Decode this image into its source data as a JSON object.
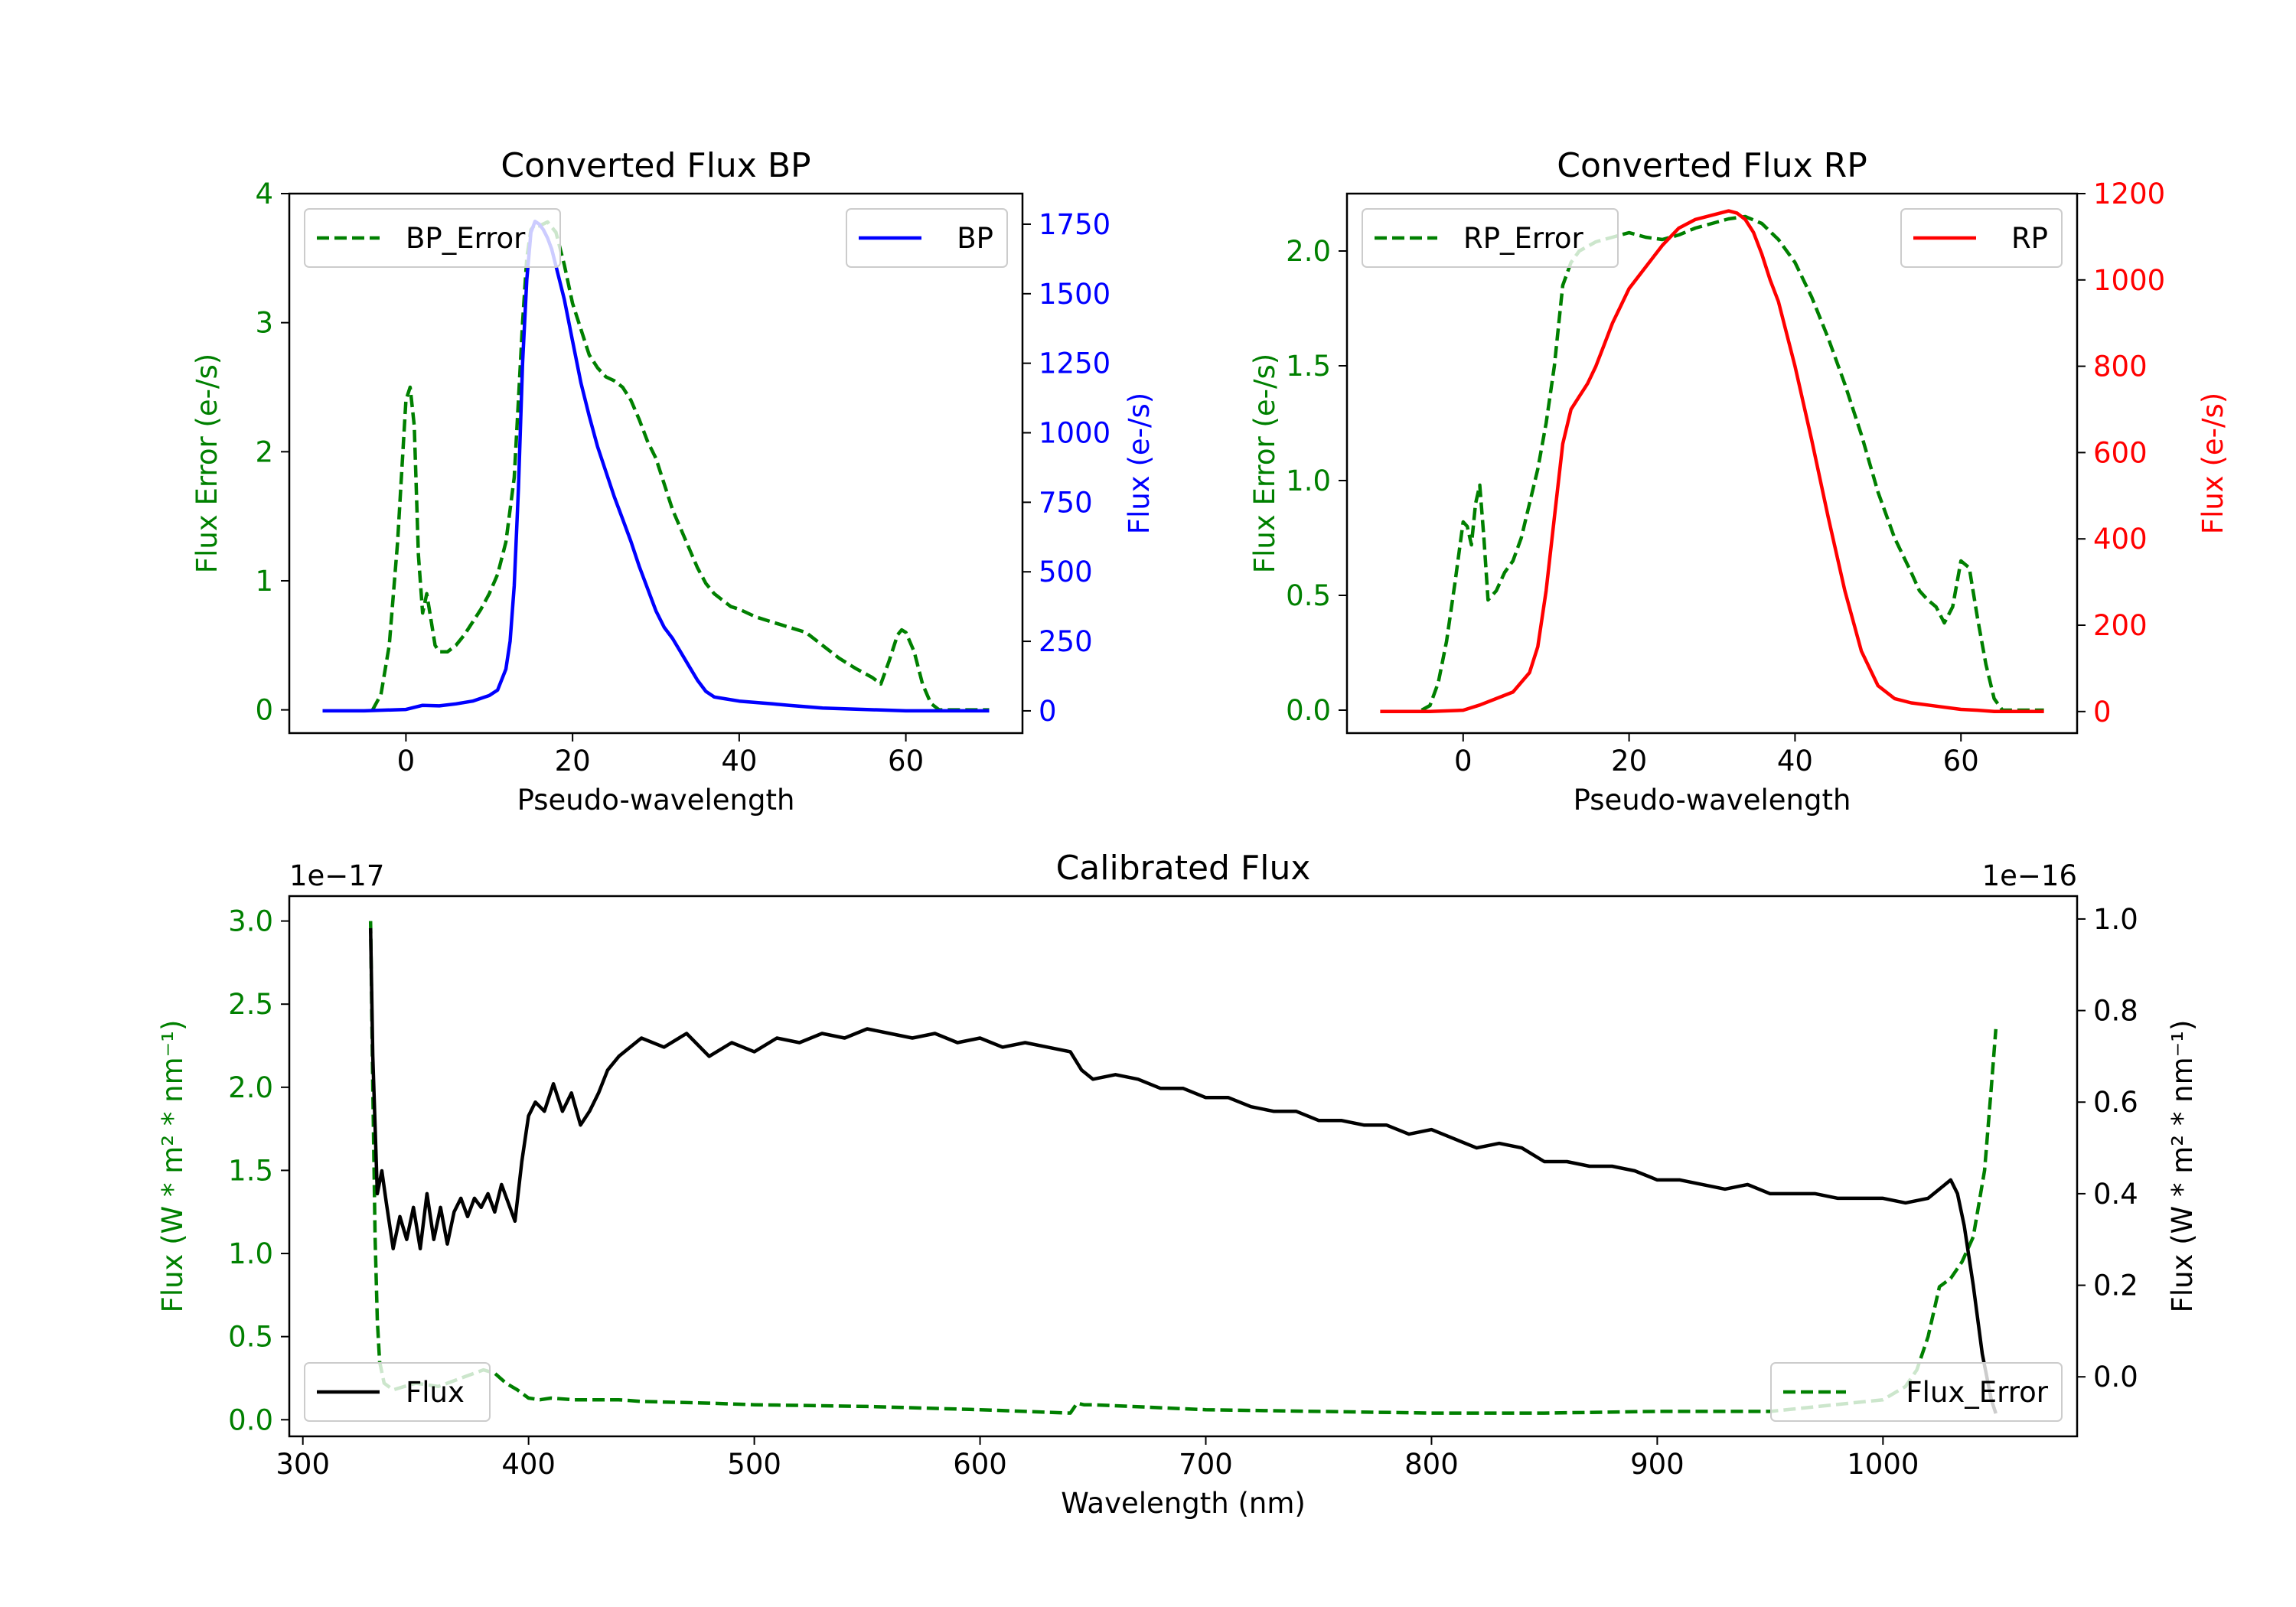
{
  "chart_data": [
    {
      "type": "line",
      "title": "Converted Flux BP",
      "xlabel": "Pseudo-wavelength",
      "ylabel_left": "Flux Error (e-/s)",
      "ylabel_right": "Flux (e-/s)",
      "xlim": [
        -14,
        74
      ],
      "ylim_left": [
        -0.18,
        4.0
      ],
      "ylim_right": [
        -80,
        1860
      ],
      "xticks": [
        0,
        20,
        40,
        60
      ],
      "xtick_labels": [
        "0",
        "20",
        "40",
        "60"
      ],
      "yticks_left": [
        0,
        1,
        2,
        3,
        4
      ],
      "ytick_labels_left": [
        "0",
        "1",
        "2",
        "3",
        "4"
      ],
      "yticks_right": [
        0,
        250,
        500,
        750,
        1000,
        1250,
        1500,
        1750
      ],
      "ytick_labels_right": [
        "0",
        "250",
        "500",
        "750",
        "1000",
        "1250",
        "1500",
        "1750"
      ],
      "left_color": "#008000",
      "right_color": "#0000ff",
      "legend_left": "BP_Error",
      "legend_right": "BP",
      "series": [
        {
          "name": "BP_Error",
          "axis": "left",
          "color": "#008000",
          "style": "dashed",
          "x": [
            -4,
            -3,
            -2,
            -1,
            0,
            0.5,
            1,
            1.5,
            2,
            2.5,
            3,
            3.5,
            4,
            5,
            6,
            7,
            8,
            9,
            10,
            11,
            12,
            13,
            13.5,
            14,
            14.5,
            15,
            15.5,
            16,
            17,
            18,
            19,
            20,
            21,
            22,
            23,
            24,
            25,
            26,
            27,
            28,
            29,
            30,
            31,
            32,
            33,
            34,
            35,
            36,
            37,
            38,
            39,
            40,
            42,
            44,
            46,
            48,
            50,
            52,
            54,
            56,
            57,
            58,
            59,
            59.5,
            60,
            61,
            62,
            63,
            64,
            65,
            66,
            68,
            70
          ],
          "y": [
            0.0,
            0.12,
            0.5,
            1.3,
            2.4,
            2.5,
            2.2,
            1.2,
            0.75,
            0.9,
            0.7,
            0.5,
            0.45,
            0.45,
            0.5,
            0.58,
            0.68,
            0.78,
            0.9,
            1.05,
            1.3,
            1.8,
            2.4,
            3.0,
            3.5,
            3.72,
            3.76,
            3.75,
            3.78,
            3.7,
            3.45,
            3.15,
            2.95,
            2.75,
            2.65,
            2.58,
            2.55,
            2.5,
            2.4,
            2.25,
            2.08,
            1.95,
            1.75,
            1.55,
            1.4,
            1.25,
            1.1,
            0.98,
            0.9,
            0.85,
            0.8,
            0.78,
            0.72,
            0.68,
            0.64,
            0.6,
            0.5,
            0.4,
            0.32,
            0.25,
            0.2,
            0.38,
            0.58,
            0.62,
            0.6,
            0.45,
            0.2,
            0.05,
            0.0,
            0.0,
            0.0,
            0.0,
            0.0
          ]
        },
        {
          "name": "BP",
          "axis": "right",
          "color": "#0000ff",
          "style": "solid",
          "x": [
            -10,
            -5,
            0,
            2,
            4,
            6,
            8,
            10,
            11,
            12,
            12.5,
            13,
            13.5,
            14,
            14.5,
            15,
            15.5,
            16,
            16.5,
            17,
            17.5,
            18,
            19,
            20,
            21,
            22,
            23,
            24,
            25,
            26,
            27,
            28,
            29,
            30,
            31,
            32,
            33,
            34,
            35,
            36,
            37,
            38,
            40,
            42,
            44,
            46,
            48,
            50,
            55,
            60,
            65,
            70
          ],
          "y": [
            0,
            0,
            5,
            20,
            18,
            25,
            35,
            55,
            75,
            150,
            250,
            450,
            800,
            1250,
            1550,
            1720,
            1760,
            1750,
            1730,
            1700,
            1660,
            1600,
            1480,
            1330,
            1180,
            1060,
            950,
            860,
            770,
            690,
            610,
            520,
            440,
            360,
            300,
            260,
            210,
            160,
            110,
            70,
            50,
            45,
            35,
            30,
            25,
            20,
            15,
            10,
            5,
            0,
            0,
            0
          ]
        }
      ]
    },
    {
      "type": "line",
      "title": "Converted Flux RP",
      "xlabel": "Pseudo-wavelength",
      "ylabel_left": "Flux Error (e-/s)",
      "ylabel_right": "Flux (e-/s)",
      "xlim": [
        -14,
        74
      ],
      "ylim_left": [
        -0.1,
        2.25
      ],
      "ylim_right": [
        -50,
        1200
      ],
      "xticks": [
        0,
        20,
        40,
        60
      ],
      "xtick_labels": [
        "0",
        "20",
        "40",
        "60"
      ],
      "yticks_left": [
        0.0,
        0.5,
        1.0,
        1.5,
        2.0
      ],
      "ytick_labels_left": [
        "0.0",
        "0.5",
        "1.0",
        "1.5",
        "2.0"
      ],
      "yticks_right": [
        0,
        200,
        400,
        600,
        800,
        1000,
        1200
      ],
      "ytick_labels_right": [
        "0",
        "200",
        "400",
        "600",
        "800",
        "1000",
        "1200"
      ],
      "left_color": "#008000",
      "right_color": "#ff0000",
      "legend_left": "RP_Error",
      "legend_right": "RP",
      "series": [
        {
          "name": "RP_Error",
          "axis": "left",
          "color": "#008000",
          "style": "dashed",
          "x": [
            -5,
            -4,
            -3,
            -2,
            -1,
            0,
            0.5,
            1,
            1.5,
            2,
            2.5,
            3,
            3.5,
            4,
            5,
            6,
            7,
            8,
            9,
            10,
            11,
            12,
            13,
            14,
            15,
            16,
            18,
            20,
            22,
            24,
            26,
            28,
            30,
            32,
            34,
            36,
            38,
            40,
            42,
            44,
            46,
            48,
            50,
            52,
            54,
            55,
            56,
            57,
            58,
            59,
            60,
            61,
            62,
            63,
            64,
            65,
            70
          ],
          "y": [
            0.0,
            0.02,
            0.12,
            0.3,
            0.55,
            0.82,
            0.8,
            0.72,
            0.9,
            0.98,
            0.75,
            0.48,
            0.5,
            0.52,
            0.6,
            0.65,
            0.75,
            0.9,
            1.05,
            1.25,
            1.5,
            1.85,
            1.95,
            2.0,
            2.02,
            2.04,
            2.06,
            2.08,
            2.06,
            2.05,
            2.07,
            2.1,
            2.12,
            2.14,
            2.15,
            2.12,
            2.05,
            1.95,
            1.8,
            1.62,
            1.42,
            1.2,
            0.95,
            0.75,
            0.6,
            0.52,
            0.48,
            0.45,
            0.38,
            0.45,
            0.65,
            0.62,
            0.4,
            0.2,
            0.05,
            0.0,
            0.0
          ]
        },
        {
          "name": "RP",
          "axis": "right",
          "color": "#ff0000",
          "style": "solid",
          "x": [
            -10,
            -4,
            0,
            2,
            4,
            6,
            8,
            9,
            10,
            11,
            12,
            13,
            14,
            15,
            16,
            17,
            18,
            19,
            20,
            22,
            24,
            26,
            28,
            30,
            32,
            33,
            34,
            35,
            36,
            37,
            38,
            40,
            42,
            44,
            46,
            48,
            50,
            52,
            54,
            56,
            58,
            60,
            62,
            64,
            66,
            70
          ],
          "y": [
            0,
            0,
            3,
            15,
            30,
            45,
            90,
            150,
            280,
            450,
            620,
            700,
            730,
            760,
            800,
            850,
            900,
            940,
            980,
            1030,
            1080,
            1120,
            1140,
            1150,
            1160,
            1155,
            1140,
            1110,
            1060,
            1000,
            950,
            800,
            630,
            450,
            280,
            140,
            60,
            30,
            20,
            15,
            10,
            5,
            3,
            0,
            0,
            0
          ]
        }
      ]
    },
    {
      "type": "line",
      "title": "Calibrated Flux",
      "xlabel": "Wavelength (nm)",
      "ylabel_left": "Flux (W * m² * nm⁻¹)",
      "ylabel_right": "Flux (W * m² * nm⁻¹)",
      "offset_left": "1e−17",
      "offset_right": "1e−16",
      "xlim": [
        294,
        1086
      ],
      "ylim_left": [
        -0.1,
        3.15
      ],
      "ylim_right": [
        -0.13,
        1.05
      ],
      "xticks": [
        300,
        400,
        500,
        600,
        700,
        800,
        900,
        1000
      ],
      "xtick_labels": [
        "300",
        "400",
        "500",
        "600",
        "700",
        "800",
        "900",
        "1000"
      ],
      "yticks_left": [
        0.0,
        0.5,
        1.0,
        1.5,
        2.0,
        2.5,
        3.0
      ],
      "ytick_labels_left": [
        "0.0",
        "0.5",
        "1.0",
        "1.5",
        "2.0",
        "2.5",
        "3.0"
      ],
      "yticks_right": [
        0.0,
        0.2,
        0.4,
        0.6,
        0.8,
        1.0
      ],
      "ytick_labels_right": [
        "0.0",
        "0.2",
        "0.4",
        "0.6",
        "0.8",
        "1.0"
      ],
      "left_color": "#008000",
      "right_color": "#000000",
      "legend_left": "Flux",
      "legend_right": "Flux_Error",
      "series": [
        {
          "name": "Flux_Error",
          "axis": "left",
          "color": "#008000",
          "style": "dashed",
          "x": [
            330,
            331,
            332,
            333,
            334,
            336,
            340,
            345,
            350,
            360,
            370,
            380,
            385,
            390,
            395,
            400,
            405,
            410,
            420,
            430,
            440,
            450,
            480,
            500,
            550,
            600,
            620,
            640,
            643,
            646,
            650,
            700,
            750,
            800,
            850,
            900,
            950,
            1000,
            1010,
            1015,
            1020,
            1025,
            1030,
            1035,
            1040,
            1045,
            1048,
            1050
          ],
          "y": [
            3.0,
            2.0,
            1.1,
            0.6,
            0.35,
            0.22,
            0.18,
            0.2,
            0.22,
            0.2,
            0.25,
            0.3,
            0.28,
            0.22,
            0.18,
            0.13,
            0.12,
            0.13,
            0.12,
            0.12,
            0.12,
            0.11,
            0.1,
            0.09,
            0.08,
            0.06,
            0.05,
            0.04,
            0.1,
            0.09,
            0.09,
            0.06,
            0.05,
            0.04,
            0.04,
            0.05,
            0.05,
            0.12,
            0.2,
            0.3,
            0.5,
            0.8,
            0.85,
            0.95,
            1.1,
            1.5,
            2.0,
            2.35
          ]
        },
        {
          "name": "Flux",
          "axis": "right",
          "color": "#000000",
          "style": "solid",
          "x": [
            330,
            331,
            333,
            335,
            337,
            340,
            343,
            346,
            349,
            352,
            355,
            358,
            361,
            364,
            367,
            370,
            373,
            376,
            379,
            382,
            385,
            388,
            391,
            394,
            397,
            400,
            403,
            407,
            411,
            415,
            419,
            423,
            427,
            431,
            435,
            440,
            445,
            450,
            460,
            470,
            480,
            490,
            500,
            510,
            520,
            530,
            540,
            550,
            560,
            570,
            580,
            590,
            600,
            610,
            620,
            630,
            640,
            645,
            650,
            660,
            670,
            680,
            690,
            700,
            710,
            720,
            730,
            740,
            750,
            760,
            770,
            780,
            790,
            800,
            810,
            820,
            830,
            840,
            850,
            860,
            870,
            880,
            890,
            900,
            910,
            920,
            930,
            940,
            950,
            960,
            970,
            980,
            990,
            1000,
            1010,
            1020,
            1025,
            1030,
            1033,
            1036,
            1040,
            1044,
            1048,
            1050
          ],
          "y": [
            0.98,
            0.7,
            0.4,
            0.45,
            0.38,
            0.28,
            0.35,
            0.3,
            0.37,
            0.28,
            0.4,
            0.3,
            0.37,
            0.29,
            0.36,
            0.39,
            0.35,
            0.39,
            0.37,
            0.4,
            0.36,
            0.42,
            0.38,
            0.34,
            0.47,
            0.57,
            0.6,
            0.58,
            0.64,
            0.58,
            0.62,
            0.55,
            0.58,
            0.62,
            0.67,
            0.7,
            0.72,
            0.74,
            0.72,
            0.75,
            0.7,
            0.73,
            0.71,
            0.74,
            0.73,
            0.75,
            0.74,
            0.76,
            0.75,
            0.74,
            0.75,
            0.73,
            0.74,
            0.72,
            0.73,
            0.72,
            0.71,
            0.67,
            0.65,
            0.66,
            0.65,
            0.63,
            0.63,
            0.61,
            0.61,
            0.59,
            0.58,
            0.58,
            0.56,
            0.56,
            0.55,
            0.55,
            0.53,
            0.54,
            0.52,
            0.5,
            0.51,
            0.5,
            0.47,
            0.47,
            0.46,
            0.46,
            0.45,
            0.43,
            0.43,
            0.42,
            0.41,
            0.42,
            0.4,
            0.4,
            0.4,
            0.39,
            0.39,
            0.39,
            0.38,
            0.39,
            0.41,
            0.43,
            0.4,
            0.33,
            0.2,
            0.05,
            -0.05,
            -0.08
          ]
        }
      ]
    }
  ]
}
